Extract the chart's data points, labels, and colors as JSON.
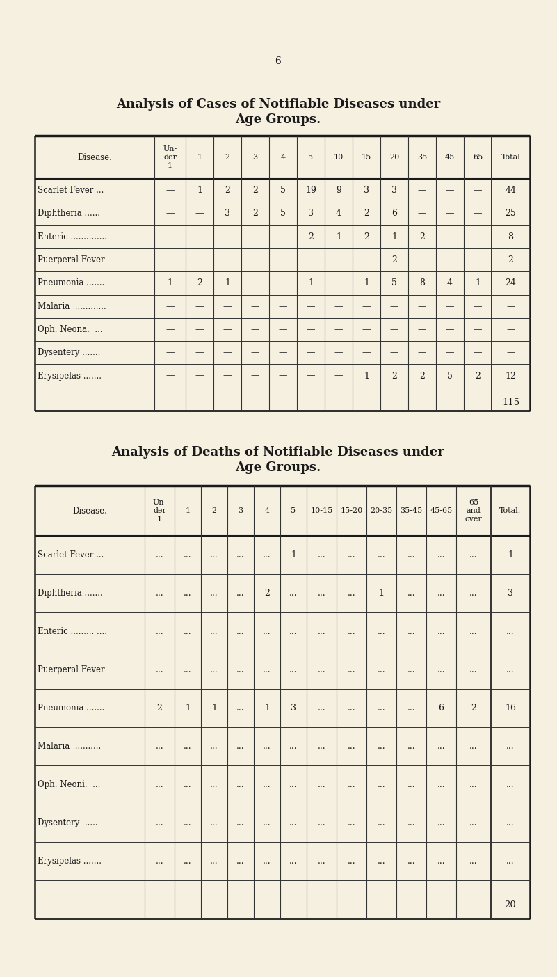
{
  "bg_color": "#f5f0e0",
  "page_num": "6",
  "title1_line1": "Analysis of Cases of Notifiable Diseases under",
  "title1_line2": "Age Groups.",
  "title2_line1": "Analysis of Deaths of Notifiable Diseases under",
  "title2_line2": "Age Groups.",
  "table1": {
    "col_headers": [
      "Disease.",
      "Un-\nder\n1",
      "1",
      "2",
      "3",
      "4",
      "5",
      "10",
      "15",
      "20",
      "35",
      "45",
      "65",
      "Total"
    ],
    "rows": [
      [
        "Scarlet Fever ...",
        "—",
        "1",
        "2",
        "2",
        "5",
        "19",
        "9",
        "3",
        "3",
        "—",
        "—",
        "—",
        "44"
      ],
      [
        "Diphtheria ......",
        "—",
        "—",
        "3",
        "2",
        "5",
        "3",
        "4",
        "2",
        "6",
        "—",
        "—",
        "—",
        "25"
      ],
      [
        "Enteric ..............",
        "—",
        "—",
        "—",
        "—",
        "—",
        "2",
        "1",
        "2",
        "1",
        "2",
        "—",
        "—",
        "8"
      ],
      [
        "Puerperal Fever",
        "—",
        "—",
        "—",
        "—",
        "—",
        "—",
        "—",
        "—",
        "2",
        "—",
        "—",
        "—",
        "2"
      ],
      [
        "Pneumonia .......",
        "1",
        "2",
        "1",
        "—",
        "—",
        "1",
        "—",
        "1",
        "5",
        "8",
        "4",
        "1",
        "24"
      ],
      [
        "Malaria  ............",
        "—",
        "—",
        "—",
        "—",
        "—",
        "—",
        "—",
        "—",
        "—",
        "—",
        "—",
        "—",
        "—"
      ],
      [
        "Oph. Neona.  ...",
        "—",
        "—",
        "—",
        "—",
        "—",
        "—",
        "—",
        "—",
        "—",
        "—",
        "—",
        "—",
        "—"
      ],
      [
        "Dysentery .......",
        "—",
        "—",
        "—",
        "—",
        "—",
        "—",
        "—",
        "—",
        "—",
        "—",
        "—",
        "—",
        "—"
      ],
      [
        "Erysipelas .......",
        "—",
        "—",
        "—",
        "—",
        "—",
        "—",
        "—",
        "1",
        "2",
        "2",
        "5",
        "2",
        "12"
      ]
    ],
    "total_row": "115"
  },
  "table2": {
    "col_headers": [
      "Disease.",
      "Un-\nder\n1",
      "1",
      "2",
      "3",
      "4",
      "5",
      "10-15",
      "15-20",
      "20-35",
      "35-45",
      "45-65",
      "65\nand\nover",
      "Total."
    ],
    "rows": [
      [
        "Scarlet Fever ...",
        "...",
        "...",
        "...",
        "...",
        "...",
        "1",
        "...",
        "...",
        "...",
        "...",
        "...",
        "...",
        "1"
      ],
      [
        "Diphtheria .......",
        "...",
        "...",
        "...",
        "...",
        "2",
        "...",
        "...",
        "...",
        "1",
        "...",
        "...",
        "...",
        "3"
      ],
      [
        "Enteric ......... ....",
        "...",
        "...",
        "...",
        "...",
        "...",
        "...",
        "...",
        "...",
        "...",
        "...",
        "...",
        "...",
        "..."
      ],
      [
        "Puerperal Fever",
        "...",
        "...",
        "...",
        "...",
        "...",
        "...",
        "...",
        "...",
        "...",
        "...",
        "...",
        "...",
        "..."
      ],
      [
        "Pneumonia .......",
        "2",
        "1",
        "1",
        "...",
        "1",
        "3",
        "...",
        "...",
        "...",
        "...",
        "6",
        "2",
        "16"
      ],
      [
        "Malaria  ..........",
        "...",
        "...",
        "...",
        "...",
        "...",
        "...",
        "...",
        "...",
        "...",
        "...",
        "...",
        "...",
        "..."
      ],
      [
        "Oph. Neoni.  ...",
        "...",
        "...",
        "...",
        "...",
        "...",
        "...",
        "...",
        "...",
        "...",
        "...",
        "...",
        "...",
        "..."
      ],
      [
        "Dysentery  .....",
        "...",
        "...",
        "...",
        "...",
        "...",
        "...",
        "...",
        "...",
        "...",
        "...",
        "...",
        "...",
        "..."
      ],
      [
        "Erysipelas .......",
        "...",
        "...",
        "...",
        "...",
        "...",
        "...",
        "...",
        "...",
        "...",
        "...",
        "...",
        "...",
        "..."
      ]
    ],
    "total_row": "20"
  }
}
